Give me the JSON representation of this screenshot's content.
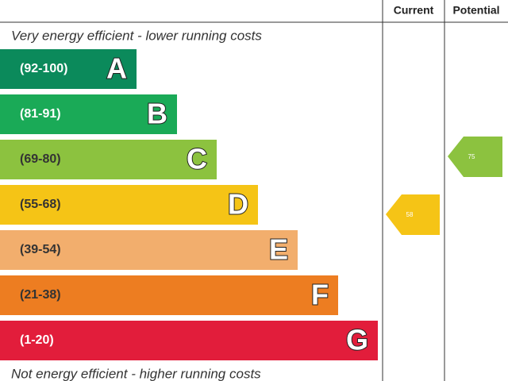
{
  "header": {
    "current": "Current",
    "potential": "Potential"
  },
  "top_note": "Very energy efficient - lower running costs",
  "bottom_note": "Not energy efficient - higher running costs",
  "bands": [
    {
      "range": "(92-100)",
      "letter": "A"
    },
    {
      "range": "(81-91)",
      "letter": "B"
    },
    {
      "range": "(69-80)",
      "letter": "C"
    },
    {
      "range": "(55-68)",
      "letter": "D"
    },
    {
      "range": "(39-54)",
      "letter": "E"
    },
    {
      "range": "(21-38)",
      "letter": "F"
    },
    {
      "range": "(1-20)",
      "letter": "G"
    }
  ],
  "current_rating": "58",
  "potential_rating": "75"
}
